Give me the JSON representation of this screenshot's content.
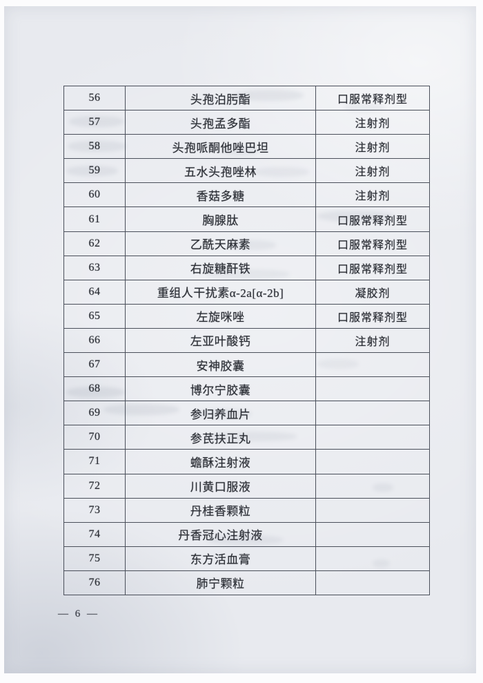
{
  "page": {
    "footer_page_number": "— 6 —"
  },
  "table": {
    "rows": [
      {
        "no": "56",
        "name": "头孢泊肟酯",
        "form": "口服常释剂型"
      },
      {
        "no": "57",
        "name": "头孢孟多酯",
        "form": "注射剂"
      },
      {
        "no": "58",
        "name": "头孢哌酮他唑巴坦",
        "form": "注射剂"
      },
      {
        "no": "59",
        "name": "五水头孢唑林",
        "form": "注射剂"
      },
      {
        "no": "60",
        "name": "香菇多糖",
        "form": "注射剂"
      },
      {
        "no": "61",
        "name": "胸腺肽",
        "form": "口服常释剂型"
      },
      {
        "no": "62",
        "name": "乙酰天麻素",
        "form": "口服常释剂型"
      },
      {
        "no": "63",
        "name": "右旋糖酐铁",
        "form": "口服常释剂型"
      },
      {
        "no": "64",
        "name": "重组人干扰素α-2a[α-2b]",
        "form": "凝胶剂"
      },
      {
        "no": "65",
        "name": "左旋咪唑",
        "form": "口服常释剂型"
      },
      {
        "no": "66",
        "name": "左亚叶酸钙",
        "form": "注射剂"
      },
      {
        "no": "67",
        "name": "安神胶囊",
        "form": ""
      },
      {
        "no": "68",
        "name": "博尔宁胶囊",
        "form": ""
      },
      {
        "no": "69",
        "name": "参归养血片",
        "form": ""
      },
      {
        "no": "70",
        "name": "参芪扶正丸",
        "form": ""
      },
      {
        "no": "71",
        "name": "蟾酥注射液",
        "form": ""
      },
      {
        "no": "72",
        "name": "川黄口服液",
        "form": ""
      },
      {
        "no": "73",
        "name": "丹桂香颗粒",
        "form": ""
      },
      {
        "no": "74",
        "name": "丹香冠心注射液",
        "form": ""
      },
      {
        "no": "75",
        "name": "东方活血膏",
        "form": ""
      },
      {
        "no": "76",
        "name": "肺宁颗粒",
        "form": ""
      }
    ]
  }
}
